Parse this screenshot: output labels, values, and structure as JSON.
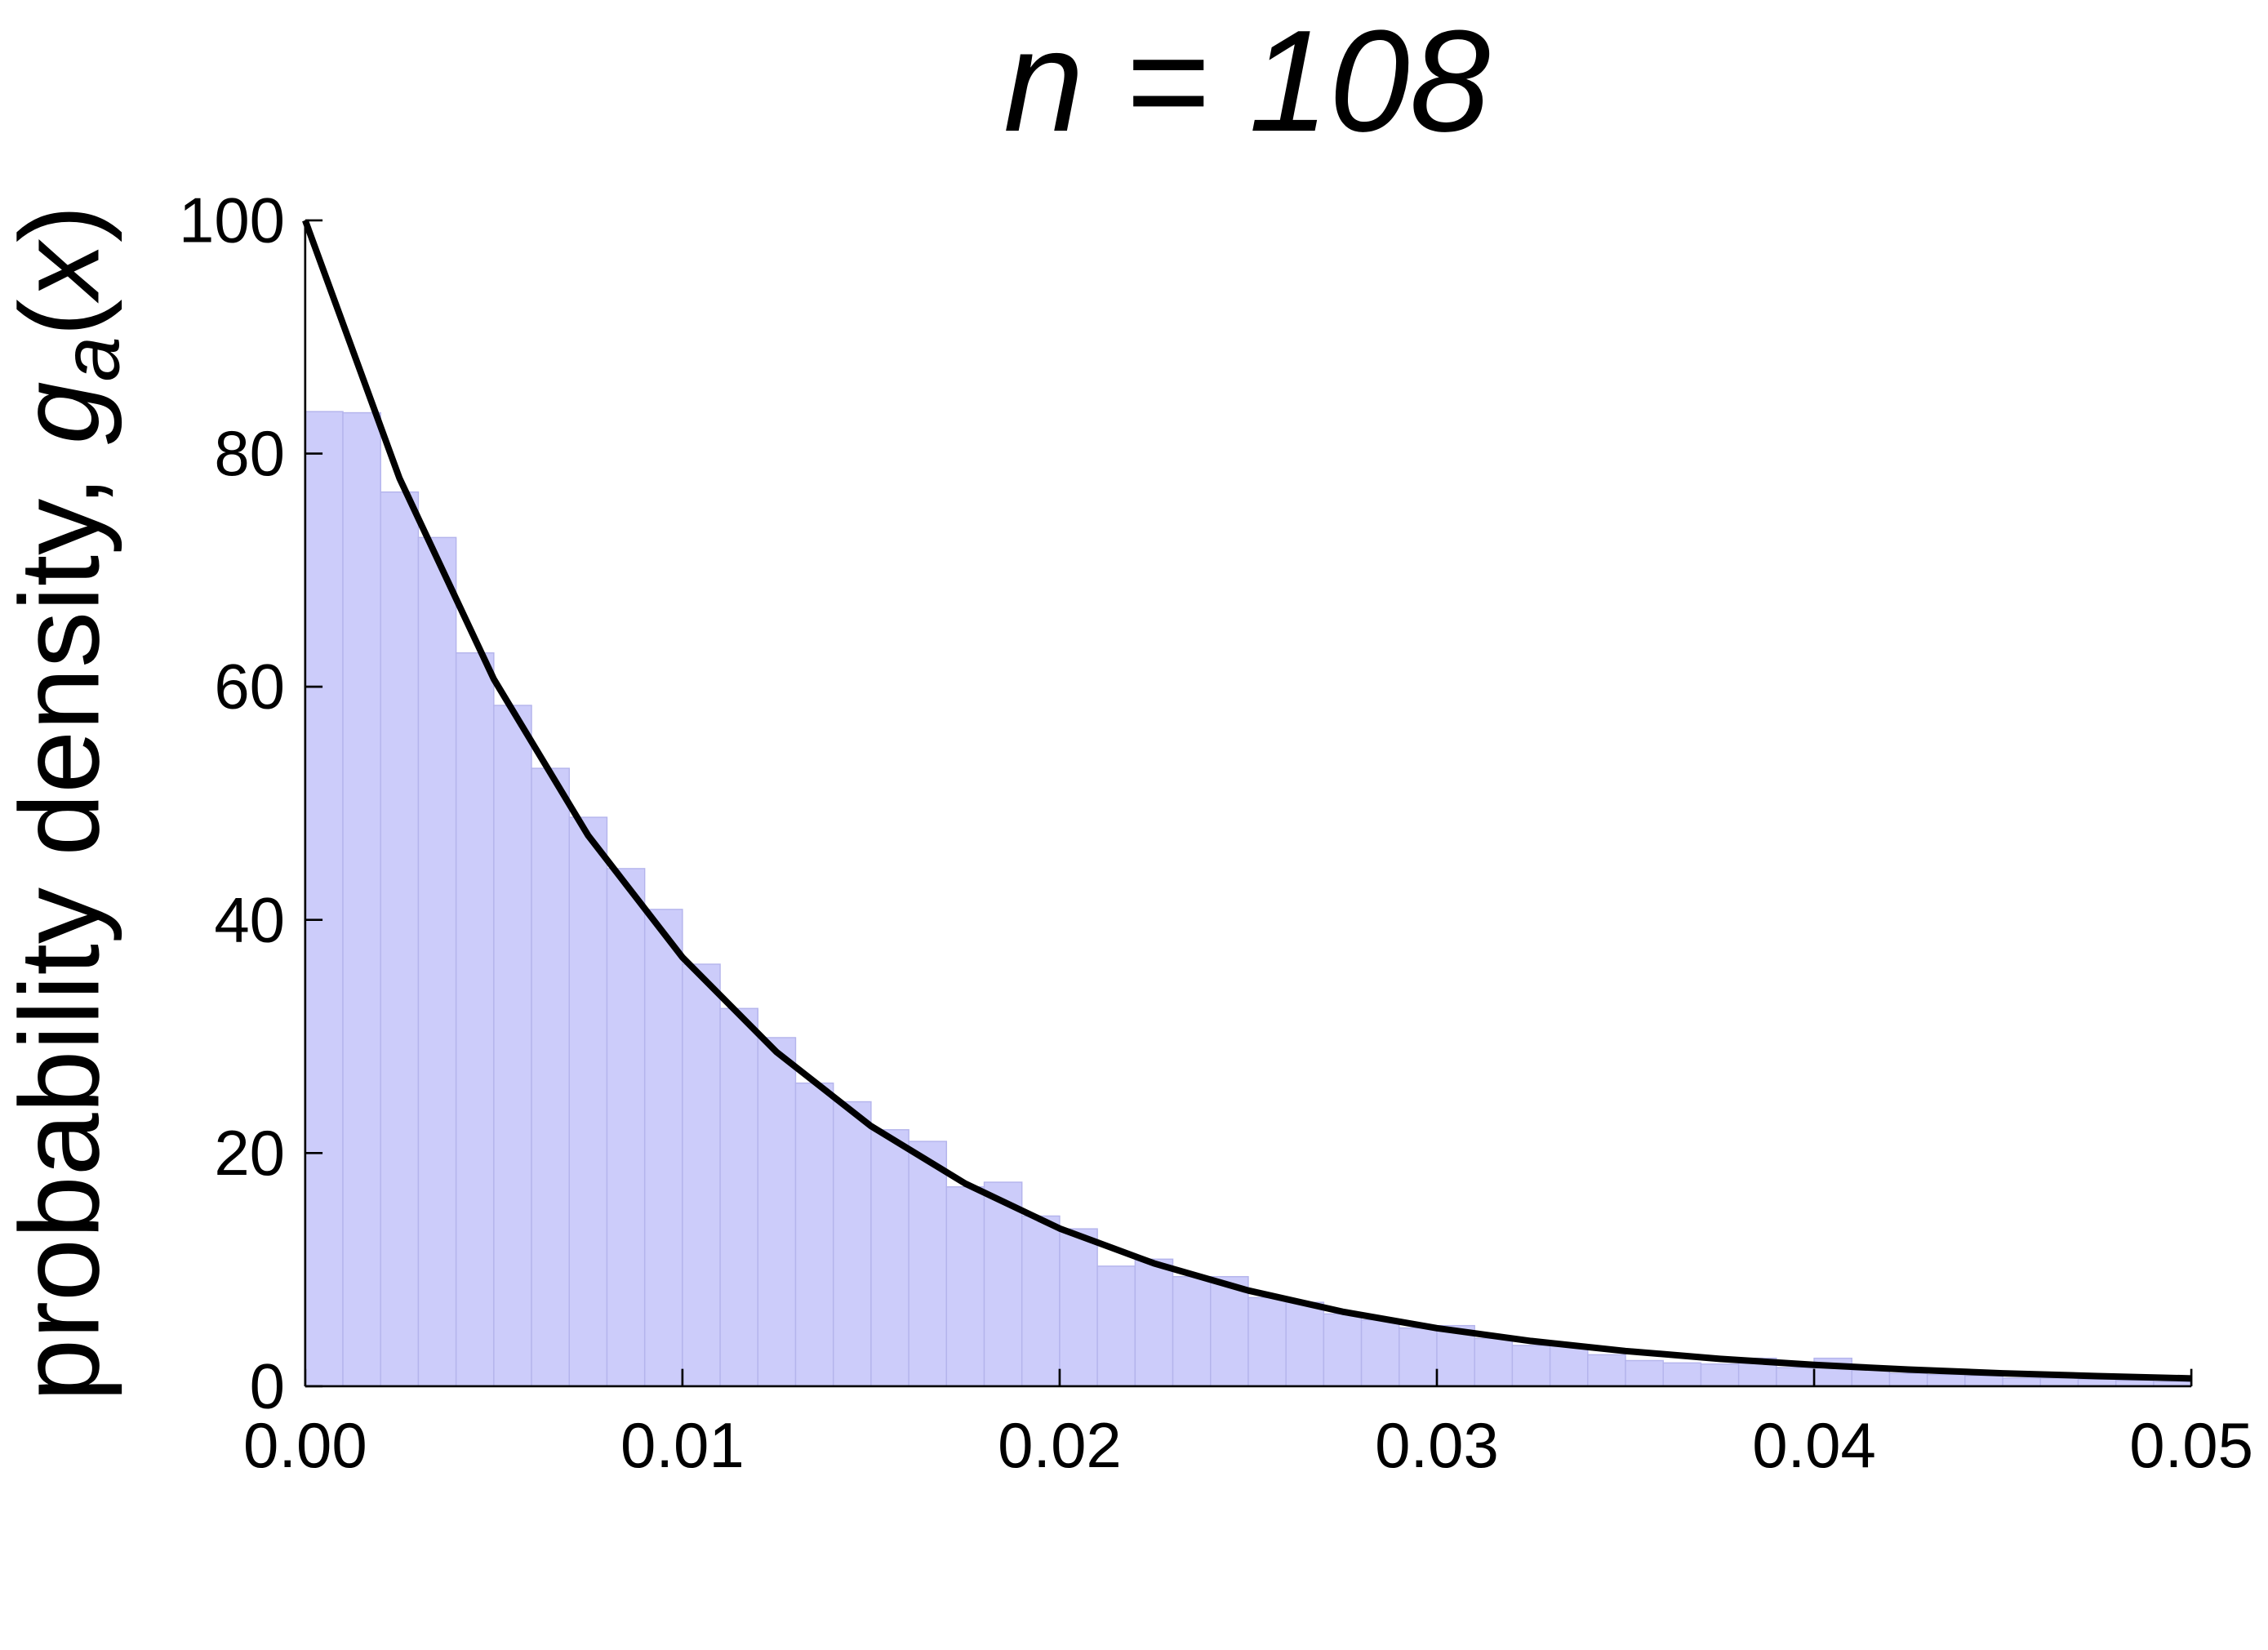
{
  "chart_data": {
    "type": "histogram",
    "title": "n = 108",
    "ylabel_parts": [
      "probability density, ",
      "g",
      "a",
      "(",
      "x",
      ")"
    ],
    "bins": [
      0,
      0.001,
      0.002,
      0.003,
      0.004,
      0.005,
      0.006,
      0.007,
      0.008,
      0.009,
      0.01,
      0.011,
      0.012,
      0.013,
      0.014,
      0.015,
      0.016,
      0.017,
      0.018,
      0.019,
      0.02,
      0.021,
      0.022,
      0.023,
      0.024,
      0.025,
      0.026,
      0.027,
      0.028,
      0.029,
      0.03,
      0.031,
      0.032,
      0.033,
      0.034,
      0.035,
      0.036,
      0.037,
      0.038,
      0.039,
      0.04,
      0.041,
      0.042,
      0.043,
      0.044,
      0.045,
      0.046,
      0.047,
      0.048,
      0.049,
      0.05
    ],
    "values": [
      83.6,
      83.5,
      76.7,
      72.8,
      62.9,
      58.4,
      53,
      48.8,
      44.4,
      40.9,
      36.2,
      32.4,
      29.9,
      26,
      24.4,
      22,
      21,
      17.1,
      17.5,
      14.6,
      13.5,
      10.3,
      10.9,
      9.4,
      9.4,
      7.6,
      7.2,
      6.2,
      5.7,
      5,
      5.2,
      4.1,
      3.5,
      3.5,
      2.7,
      2.2,
      2,
      1.9,
      2.4,
      1.6,
      2.4,
      1.4,
      1.1,
      1,
      0.9,
      0.7,
      0.7,
      0.6,
      0.5,
      0.4
    ],
    "color": "#ccccfa",
    "curve": {
      "color": "#000000",
      "x": [
        0,
        0.0025,
        0.005,
        0.0075,
        0.01,
        0.0125,
        0.015,
        0.0175,
        0.02,
        0.0225,
        0.025,
        0.0275,
        0.03,
        0.0325,
        0.035,
        0.0375,
        0.04,
        0.0425,
        0.045,
        0.0475,
        0.05
      ],
      "y": [
        100,
        77.88,
        60.65,
        47.24,
        36.79,
        28.65,
        22.31,
        17.38,
        13.53,
        10.54,
        8.21,
        6.39,
        4.98,
        3.88,
        3.02,
        2.35,
        1.83,
        1.43,
        1.11,
        0.87,
        0.67
      ]
    },
    "xlim": [
      0,
      0.05
    ],
    "xticks": [
      {
        "value": 0,
        "label": "0.00"
      },
      {
        "value": 0.01,
        "label": "0.01"
      },
      {
        "value": 0.02,
        "label": "0.02"
      },
      {
        "value": 0.03,
        "label": "0.03"
      },
      {
        "value": 0.04,
        "label": "0.04"
      },
      {
        "value": 0.05,
        "label": "0.05"
      }
    ],
    "ylim": [
      0,
      100
    ],
    "yticks": [
      0,
      20,
      40,
      60,
      80,
      100
    ]
  }
}
